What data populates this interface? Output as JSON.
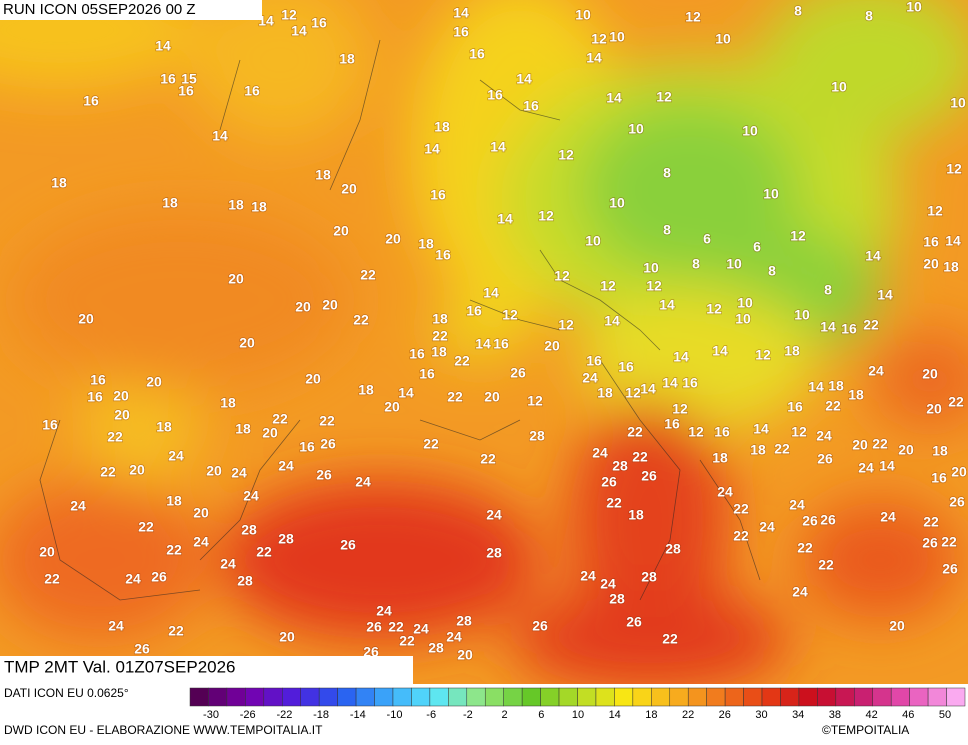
{
  "header": {
    "run": "RUN ICON 05SEP2026 00 Z",
    "field": "TMP 2MT Val. 01Z07SEP2026"
  },
  "footer": {
    "source": "DATI ICON EU 0.0625°",
    "credit": "DWD ICON EU - ELABORAZIONE WWW.TEMPOITALIA.IT",
    "copyright": "©TEMPOITALIA"
  },
  "colorbar": {
    "ticks": [
      -30,
      -26,
      -22,
      -18,
      -14,
      -10,
      -6,
      -2,
      2,
      6,
      10,
      14,
      18,
      22,
      26,
      30,
      34,
      38,
      42,
      46,
      50
    ]
  },
  "map": {
    "temperature_labels": [
      12,
      14,
      14,
      16,
      14,
      16,
      10,
      12,
      10,
      14,
      12,
      8,
      8,
      10,
      10,
      14,
      18,
      16,
      15,
      16,
      16,
      16,
      16,
      16,
      14,
      16,
      14,
      12,
      10,
      10,
      14,
      18,
      14,
      14,
      12,
      10,
      10,
      18,
      18,
      18,
      18,
      18,
      20,
      16,
      14,
      12,
      8,
      10,
      10,
      12,
      12,
      20,
      20,
      18,
      16,
      10,
      8,
      6,
      6,
      12,
      16,
      14,
      20,
      18,
      14,
      8,
      10,
      8,
      10,
      12,
      12,
      12,
      20,
      22,
      20,
      20,
      14,
      8,
      14,
      20,
      22,
      18,
      16,
      12,
      12,
      14,
      14,
      12,
      10,
      10,
      10,
      14,
      16,
      22,
      20,
      22,
      16,
      18,
      14,
      16,
      20,
      16,
      16,
      14,
      14,
      12,
      18,
      16,
      20,
      20,
      18,
      14,
      16,
      22,
      26,
      24,
      18,
      12,
      14,
      16,
      14,
      18,
      18,
      24,
      20,
      16,
      20,
      18,
      22,
      22,
      20,
      22,
      20,
      12,
      14,
      12,
      16,
      22,
      20,
      22,
      16,
      20,
      18,
      22,
      18,
      20,
      16,
      26,
      22,
      28,
      22,
      16,
      12,
      16,
      14,
      12,
      24,
      20,
      22,
      20,
      24,
      22,
      20,
      20,
      24,
      24,
      26,
      24,
      22,
      24,
      28,
      22,
      26,
      18,
      18,
      22,
      26,
      24,
      14,
      18,
      16,
      20,
      24,
      18,
      24,
      20,
      26,
      22,
      18,
      24,
      22,
      24,
      26,
      26,
      24,
      22,
      26,
      22,
      28,
      28,
      26,
      22,
      24,
      22,
      24,
      28,
      28,
      22,
      24,
      22,
      26,
      22,
      20,
      24,
      22,
      24,
      26,
      28,
      24,
      24,
      28,
      22,
      26,
      28,
      24,
      24,
      24,
      22,
      26,
      22,
      24,
      28,
      26,
      26,
      20,
      24,
      20,
      22,
      20,
      28,
      22,
      26,
      26
    ]
  }
}
